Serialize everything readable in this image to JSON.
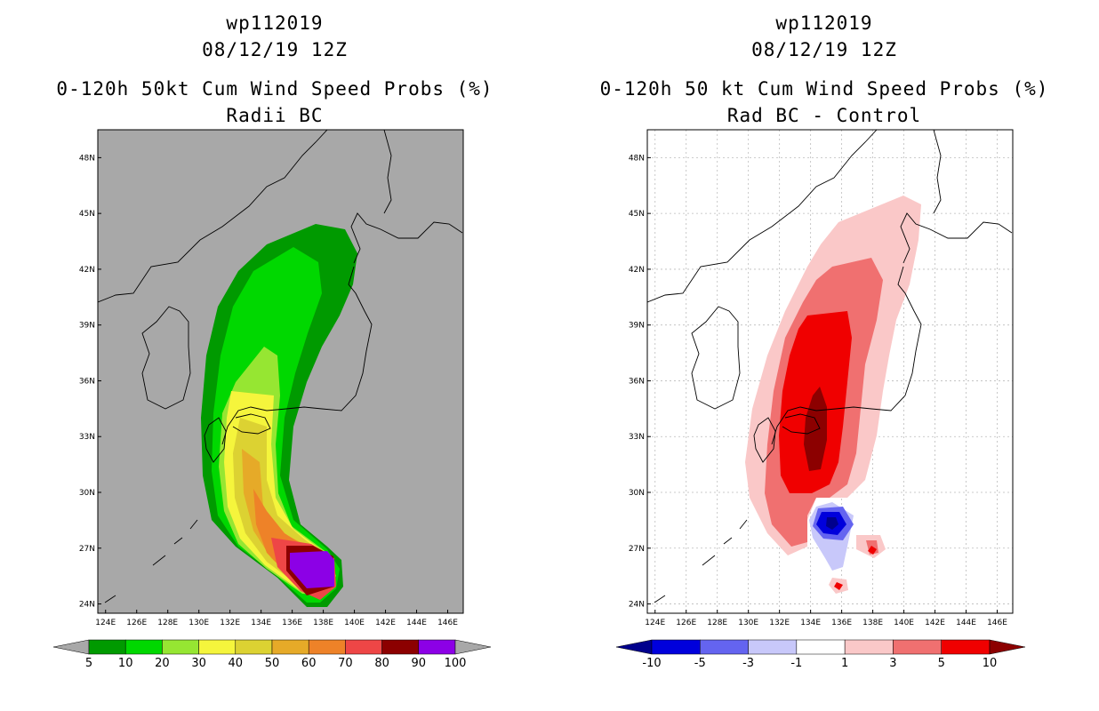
{
  "panels": [
    {
      "id": "left",
      "title_lines": [
        "wp112019",
        "08/12/19 12Z",
        "0-120h 50kt Cum Wind Speed Probs (%)",
        "Radii BC"
      ],
      "background": "#a8a8a8",
      "colorbar": {
        "labels": [
          "5",
          "10",
          "20",
          "30",
          "40",
          "50",
          "60",
          "70",
          "80",
          "90",
          "100"
        ],
        "colors": [
          "#009a00",
          "#00d800",
          "#96e632",
          "#f5f53c",
          "#dcd232",
          "#e6aa28",
          "#ee8228",
          "#ee4646",
          "#8c0000",
          "#8c00e6"
        ],
        "ext_color": "#a8a8a8"
      }
    },
    {
      "id": "right",
      "title_lines": [
        "wp112019",
        "08/12/19 12Z",
        "0-120h 50 kt Cum Wind Speed Probs (%)",
        "Rad BC - Control"
      ],
      "background": "#ffffff",
      "colorbar": {
        "labels": [
          "-10",
          "-5",
          "-3",
          "-1",
          "1",
          "3",
          "5",
          "10"
        ],
        "colors": [
          "#0000dc",
          "#6464f0",
          "#c8c8fa",
          "#ffffff",
          "#fac8c8",
          "#f07070",
          "#f00000"
        ],
        "ext_low_color": "#00008c",
        "ext_high_color": "#8c0000"
      }
    }
  ],
  "map": {
    "lon_labels": [
      "124E",
      "126E",
      "128E",
      "130E",
      "132E",
      "134E",
      "136E",
      "138E",
      "140E",
      "142E",
      "144E",
      "146E"
    ],
    "lat_labels": [
      "24N",
      "27N",
      "30N",
      "33N",
      "36N",
      "39N",
      "42N",
      "45N",
      "48N"
    ]
  },
  "chart_data": [
    {
      "type": "heatmap",
      "title": "0-120h 50kt Cum Wind Speed Probs (%)",
      "subtitle": "Radii BC",
      "storm": "wp112019",
      "valid": "08/12/19 12Z",
      "x_range": [
        123.5,
        147
      ],
      "y_range": [
        23.5,
        49.5
      ],
      "contour_levels": [
        5,
        10,
        20,
        30,
        40,
        50,
        60,
        70,
        80,
        90,
        100
      ],
      "peak": {
        "lon": 137.2,
        "lat": 25.6,
        "value_range": "90-100"
      }
    },
    {
      "type": "heatmap",
      "title": "0-120h 50 kt Cum Wind Speed Probs (%)",
      "subtitle": "Rad BC - Control",
      "storm": "wp112019",
      "valid": "08/12/19 12Z",
      "x_range": [
        123.5,
        147
      ],
      "y_range": [
        23.5,
        49.5
      ],
      "contour_levels": [
        -10,
        -5,
        -3,
        -1,
        1,
        3,
        5,
        10
      ],
      "max_positive": {
        "lon": 134.0,
        "lat": 33.5,
        "value_range": ">10"
      },
      "max_negative": {
        "lon": 135.0,
        "lat": 28.5,
        "value_range": "<-10"
      }
    }
  ]
}
